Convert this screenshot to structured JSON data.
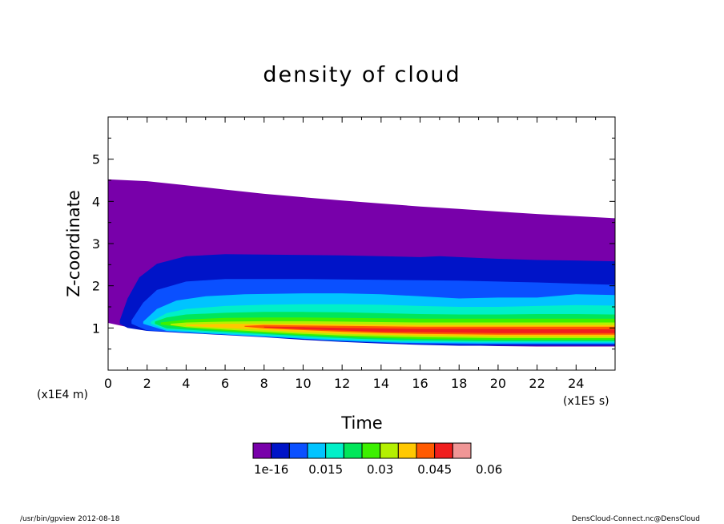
{
  "chart_data": {
    "type": "heatmap",
    "title": "density of cloud",
    "xlabel": "Time",
    "ylabel": "Z-coordinate",
    "x_unit": "(x1E5 s)",
    "y_unit": "(x1E4 m)",
    "xlim": [
      0,
      26
    ],
    "ylim": [
      0,
      6
    ],
    "x_ticks": [
      "0",
      "2",
      "4",
      "6",
      "8",
      "10",
      "12",
      "14",
      "16",
      "18",
      "20",
      "22",
      "24"
    ],
    "y_ticks": [
      "1",
      "2",
      "3",
      "4",
      "5"
    ],
    "colorbar": {
      "tick_labels": [
        "1e-16",
        "0.015",
        "0.03",
        "0.045",
        "0.06"
      ],
      "tick_values": [
        1e-16,
        0.015,
        0.03,
        0.045,
        0.06
      ],
      "colors": [
        "#7800aa",
        "#0014c8",
        "#0a50ff",
        "#00c4ff",
        "#00f0c8",
        "#00e65a",
        "#3cf000",
        "#b4f000",
        "#ffc800",
        "#ff5a00",
        "#f01e1e",
        "#f09696"
      ]
    },
    "contours": [
      {
        "level": 1e-16,
        "color": "#7800aa",
        "top": [
          [
            0,
            4.52
          ],
          [
            2,
            4.48
          ],
          [
            4,
            4.38
          ],
          [
            6,
            4.28
          ],
          [
            8,
            4.18
          ],
          [
            10,
            4.1
          ],
          [
            12,
            4.02
          ],
          [
            14,
            3.95
          ],
          [
            16,
            3.88
          ],
          [
            18,
            3.82
          ],
          [
            20,
            3.76
          ],
          [
            22,
            3.7
          ],
          [
            24,
            3.65
          ],
          [
            26,
            3.6
          ]
        ],
        "bottom": [
          [
            0,
            1.12
          ],
          [
            1,
            1.02
          ],
          [
            2,
            0.95
          ],
          [
            4,
            0.9
          ],
          [
            6,
            0.85
          ],
          [
            8,
            0.8
          ],
          [
            10,
            0.74
          ],
          [
            12,
            0.68
          ],
          [
            14,
            0.64
          ],
          [
            16,
            0.61
          ],
          [
            18,
            0.59
          ],
          [
            20,
            0.57
          ],
          [
            22,
            0.56
          ],
          [
            24,
            0.56
          ],
          [
            26,
            0.56
          ]
        ]
      },
      {
        "level": 0.005,
        "color": "#0014c8",
        "top": [
          [
            0.6,
            1.18
          ],
          [
            1,
            1.7
          ],
          [
            1.6,
            2.2
          ],
          [
            2.5,
            2.52
          ],
          [
            4,
            2.7
          ],
          [
            6,
            2.75
          ],
          [
            8,
            2.74
          ],
          [
            10,
            2.73
          ],
          [
            12,
            2.72
          ],
          [
            14,
            2.7
          ],
          [
            16,
            2.68
          ],
          [
            17,
            2.7
          ],
          [
            18,
            2.68
          ],
          [
            20,
            2.64
          ],
          [
            22,
            2.61
          ],
          [
            24,
            2.6
          ],
          [
            26,
            2.58
          ]
        ],
        "bottom": [
          [
            0.6,
            1.1
          ],
          [
            1,
            1.0
          ],
          [
            2,
            0.93
          ],
          [
            4,
            0.88
          ],
          [
            6,
            0.83
          ],
          [
            8,
            0.78
          ],
          [
            10,
            0.72
          ],
          [
            12,
            0.67
          ],
          [
            14,
            0.63
          ],
          [
            16,
            0.6
          ],
          [
            18,
            0.58
          ],
          [
            20,
            0.58
          ],
          [
            22,
            0.58
          ],
          [
            24,
            0.58
          ],
          [
            26,
            0.58
          ]
        ]
      },
      {
        "level": 0.01,
        "color": "#0a50ff",
        "top": [
          [
            1.2,
            1.18
          ],
          [
            1.8,
            1.6
          ],
          [
            2.5,
            1.9
          ],
          [
            4,
            2.1
          ],
          [
            6,
            2.16
          ],
          [
            8,
            2.16
          ],
          [
            10,
            2.16
          ],
          [
            12,
            2.15
          ],
          [
            14,
            2.14
          ],
          [
            16,
            2.13
          ],
          [
            18,
            2.12
          ],
          [
            20,
            2.1
          ],
          [
            22,
            2.08
          ],
          [
            24,
            2.05
          ],
          [
            26,
            2.02
          ]
        ],
        "bottom": [
          [
            1.2,
            1.1
          ],
          [
            2,
            0.94
          ],
          [
            4,
            0.89
          ],
          [
            6,
            0.84
          ],
          [
            8,
            0.79
          ],
          [
            10,
            0.74
          ],
          [
            12,
            0.69
          ],
          [
            14,
            0.65
          ],
          [
            16,
            0.62
          ],
          [
            18,
            0.61
          ],
          [
            20,
            0.61
          ],
          [
            22,
            0.61
          ],
          [
            24,
            0.61
          ],
          [
            26,
            0.61
          ]
        ]
      },
      {
        "level": 0.015,
        "color": "#00c4ff",
        "top": [
          [
            1.8,
            1.15
          ],
          [
            2.5,
            1.45
          ],
          [
            3.5,
            1.65
          ],
          [
            5,
            1.75
          ],
          [
            7,
            1.8
          ],
          [
            10,
            1.82
          ],
          [
            12,
            1.82
          ],
          [
            14,
            1.8
          ],
          [
            16,
            1.75
          ],
          [
            18,
            1.7
          ],
          [
            20,
            1.72
          ],
          [
            22,
            1.72
          ],
          [
            24,
            1.8
          ],
          [
            26,
            1.78
          ]
        ],
        "bottom": [
          [
            1.8,
            1.1
          ],
          [
            3,
            0.93
          ],
          [
            5,
            0.87
          ],
          [
            7,
            0.82
          ],
          [
            9,
            0.77
          ],
          [
            11,
            0.72
          ],
          [
            13,
            0.68
          ],
          [
            15,
            0.65
          ],
          [
            17,
            0.64
          ],
          [
            19,
            0.63
          ],
          [
            22,
            0.63
          ],
          [
            26,
            0.63
          ]
        ]
      },
      {
        "level": 0.02,
        "color": "#00f0c8",
        "top": [
          [
            2.2,
            1.15
          ],
          [
            3,
            1.35
          ],
          [
            4,
            1.45
          ],
          [
            6,
            1.52
          ],
          [
            8,
            1.55
          ],
          [
            10,
            1.56
          ],
          [
            12,
            1.56
          ],
          [
            14,
            1.55
          ],
          [
            16,
            1.52
          ],
          [
            18,
            1.5
          ],
          [
            20,
            1.5
          ],
          [
            22,
            1.52
          ],
          [
            24,
            1.54
          ],
          [
            26,
            1.53
          ]
        ],
        "bottom": [
          [
            2.2,
            1.1
          ],
          [
            3,
            0.96
          ],
          [
            5,
            0.9
          ],
          [
            7,
            0.85
          ],
          [
            9,
            0.8
          ],
          [
            11,
            0.75
          ],
          [
            13,
            0.71
          ],
          [
            15,
            0.68
          ],
          [
            17,
            0.67
          ],
          [
            19,
            0.66
          ],
          [
            22,
            0.66
          ],
          [
            26,
            0.66
          ]
        ]
      },
      {
        "level": 0.025,
        "color": "#00e65a",
        "top": [
          [
            2.4,
            1.15
          ],
          [
            3,
            1.25
          ],
          [
            4,
            1.32
          ],
          [
            6,
            1.36
          ],
          [
            8,
            1.38
          ],
          [
            10,
            1.38
          ],
          [
            12,
            1.37
          ],
          [
            14,
            1.35
          ],
          [
            16,
            1.33
          ],
          [
            18,
            1.32
          ],
          [
            20,
            1.32
          ],
          [
            22,
            1.33
          ],
          [
            24,
            1.33
          ],
          [
            26,
            1.32
          ]
        ],
        "bottom": [
          [
            2.4,
            1.1
          ],
          [
            3,
            0.99
          ],
          [
            5,
            0.93
          ],
          [
            7,
            0.88
          ],
          [
            9,
            0.83
          ],
          [
            11,
            0.78
          ],
          [
            13,
            0.74
          ],
          [
            15,
            0.71
          ],
          [
            17,
            0.7
          ],
          [
            19,
            0.69
          ],
          [
            22,
            0.69
          ],
          [
            26,
            0.69
          ]
        ]
      },
      {
        "level": 0.03,
        "color": "#3cf000",
        "top": [
          [
            2.7,
            1.13
          ],
          [
            4,
            1.2
          ],
          [
            6,
            1.24
          ],
          [
            8,
            1.25
          ],
          [
            10,
            1.25
          ],
          [
            12,
            1.24
          ],
          [
            14,
            1.23
          ],
          [
            16,
            1.22
          ],
          [
            18,
            1.22
          ],
          [
            20,
            1.22
          ],
          [
            22,
            1.22
          ],
          [
            24,
            1.22
          ],
          [
            26,
            1.22
          ]
        ],
        "bottom": [
          [
            2.7,
            1.08
          ],
          [
            4,
            1.0
          ],
          [
            6,
            0.93
          ],
          [
            8,
            0.88
          ],
          [
            10,
            0.83
          ],
          [
            12,
            0.79
          ],
          [
            14,
            0.76
          ],
          [
            16,
            0.74
          ],
          [
            18,
            0.73
          ],
          [
            20,
            0.72
          ],
          [
            22,
            0.72
          ],
          [
            26,
            0.72
          ]
        ]
      },
      {
        "level": 0.035,
        "color": "#b4f000",
        "top": [
          [
            3.2,
            1.1
          ],
          [
            4,
            1.13
          ],
          [
            6,
            1.15
          ],
          [
            8,
            1.16
          ],
          [
            10,
            1.16
          ],
          [
            12,
            1.15
          ],
          [
            14,
            1.14
          ],
          [
            16,
            1.13
          ],
          [
            18,
            1.13
          ],
          [
            20,
            1.13
          ],
          [
            22,
            1.13
          ],
          [
            24,
            1.13
          ],
          [
            26,
            1.13
          ]
        ],
        "bottom": [
          [
            3.2,
            1.07
          ],
          [
            4,
            1.02
          ],
          [
            6,
            0.96
          ],
          [
            8,
            0.91
          ],
          [
            10,
            0.86
          ],
          [
            12,
            0.82
          ],
          [
            14,
            0.8
          ],
          [
            16,
            0.78
          ],
          [
            18,
            0.77
          ],
          [
            20,
            0.76
          ],
          [
            22,
            0.76
          ],
          [
            26,
            0.76
          ]
        ]
      },
      {
        "level": 0.04,
        "color": "#ffc800",
        "top": [
          [
            4,
            1.08
          ],
          [
            6,
            1.1
          ],
          [
            8,
            1.1
          ],
          [
            10,
            1.1
          ],
          [
            12,
            1.09
          ],
          [
            14,
            1.08
          ],
          [
            16,
            1.07
          ],
          [
            18,
            1.07
          ],
          [
            20,
            1.07
          ],
          [
            22,
            1.07
          ],
          [
            24,
            1.07
          ],
          [
            26,
            1.07
          ]
        ],
        "bottom": [
          [
            4,
            1.05
          ],
          [
            6,
            1.0
          ],
          [
            8,
            0.95
          ],
          [
            10,
            0.9
          ],
          [
            12,
            0.86
          ],
          [
            14,
            0.84
          ],
          [
            16,
            0.82
          ],
          [
            18,
            0.81
          ],
          [
            20,
            0.8
          ],
          [
            22,
            0.8
          ],
          [
            26,
            0.8
          ]
        ]
      },
      {
        "level": 0.045,
        "color": "#ff5a00",
        "top": [
          [
            7,
            1.05
          ],
          [
            8,
            1.07
          ],
          [
            10,
            1.06
          ],
          [
            12,
            1.05
          ],
          [
            14,
            1.04
          ],
          [
            16,
            1.03
          ],
          [
            18,
            1.03
          ],
          [
            20,
            1.03
          ],
          [
            22,
            1.03
          ],
          [
            24,
            1.03
          ],
          [
            26,
            1.03
          ]
        ],
        "bottom": [
          [
            7,
            1.03
          ],
          [
            8,
            0.99
          ],
          [
            10,
            0.95
          ],
          [
            12,
            0.91
          ],
          [
            14,
            0.88
          ],
          [
            16,
            0.86
          ],
          [
            18,
            0.85
          ],
          [
            20,
            0.84
          ],
          [
            22,
            0.84
          ],
          [
            26,
            0.84
          ]
        ]
      },
      {
        "level": 0.05,
        "color": "#f01e1e",
        "top": [
          [
            8,
            1.03
          ],
          [
            10,
            1.02
          ],
          [
            12,
            1.0
          ],
          [
            14,
            0.99
          ],
          [
            16,
            0.98
          ],
          [
            18,
            0.98
          ],
          [
            20,
            0.98
          ],
          [
            22,
            0.97
          ],
          [
            24,
            0.97
          ],
          [
            26,
            0.97
          ]
        ],
        "bottom": [
          [
            8,
            1.01
          ],
          [
            10,
            0.97
          ],
          [
            12,
            0.94
          ],
          [
            14,
            0.91
          ],
          [
            16,
            0.9
          ],
          [
            18,
            0.89
          ],
          [
            20,
            0.88
          ],
          [
            22,
            0.88
          ],
          [
            26,
            0.88
          ]
        ]
      }
    ]
  },
  "footer": {
    "left": "/usr/bin/gpview   2012-08-18",
    "right": "DensCloud-Connect.nc@DensCloud"
  }
}
